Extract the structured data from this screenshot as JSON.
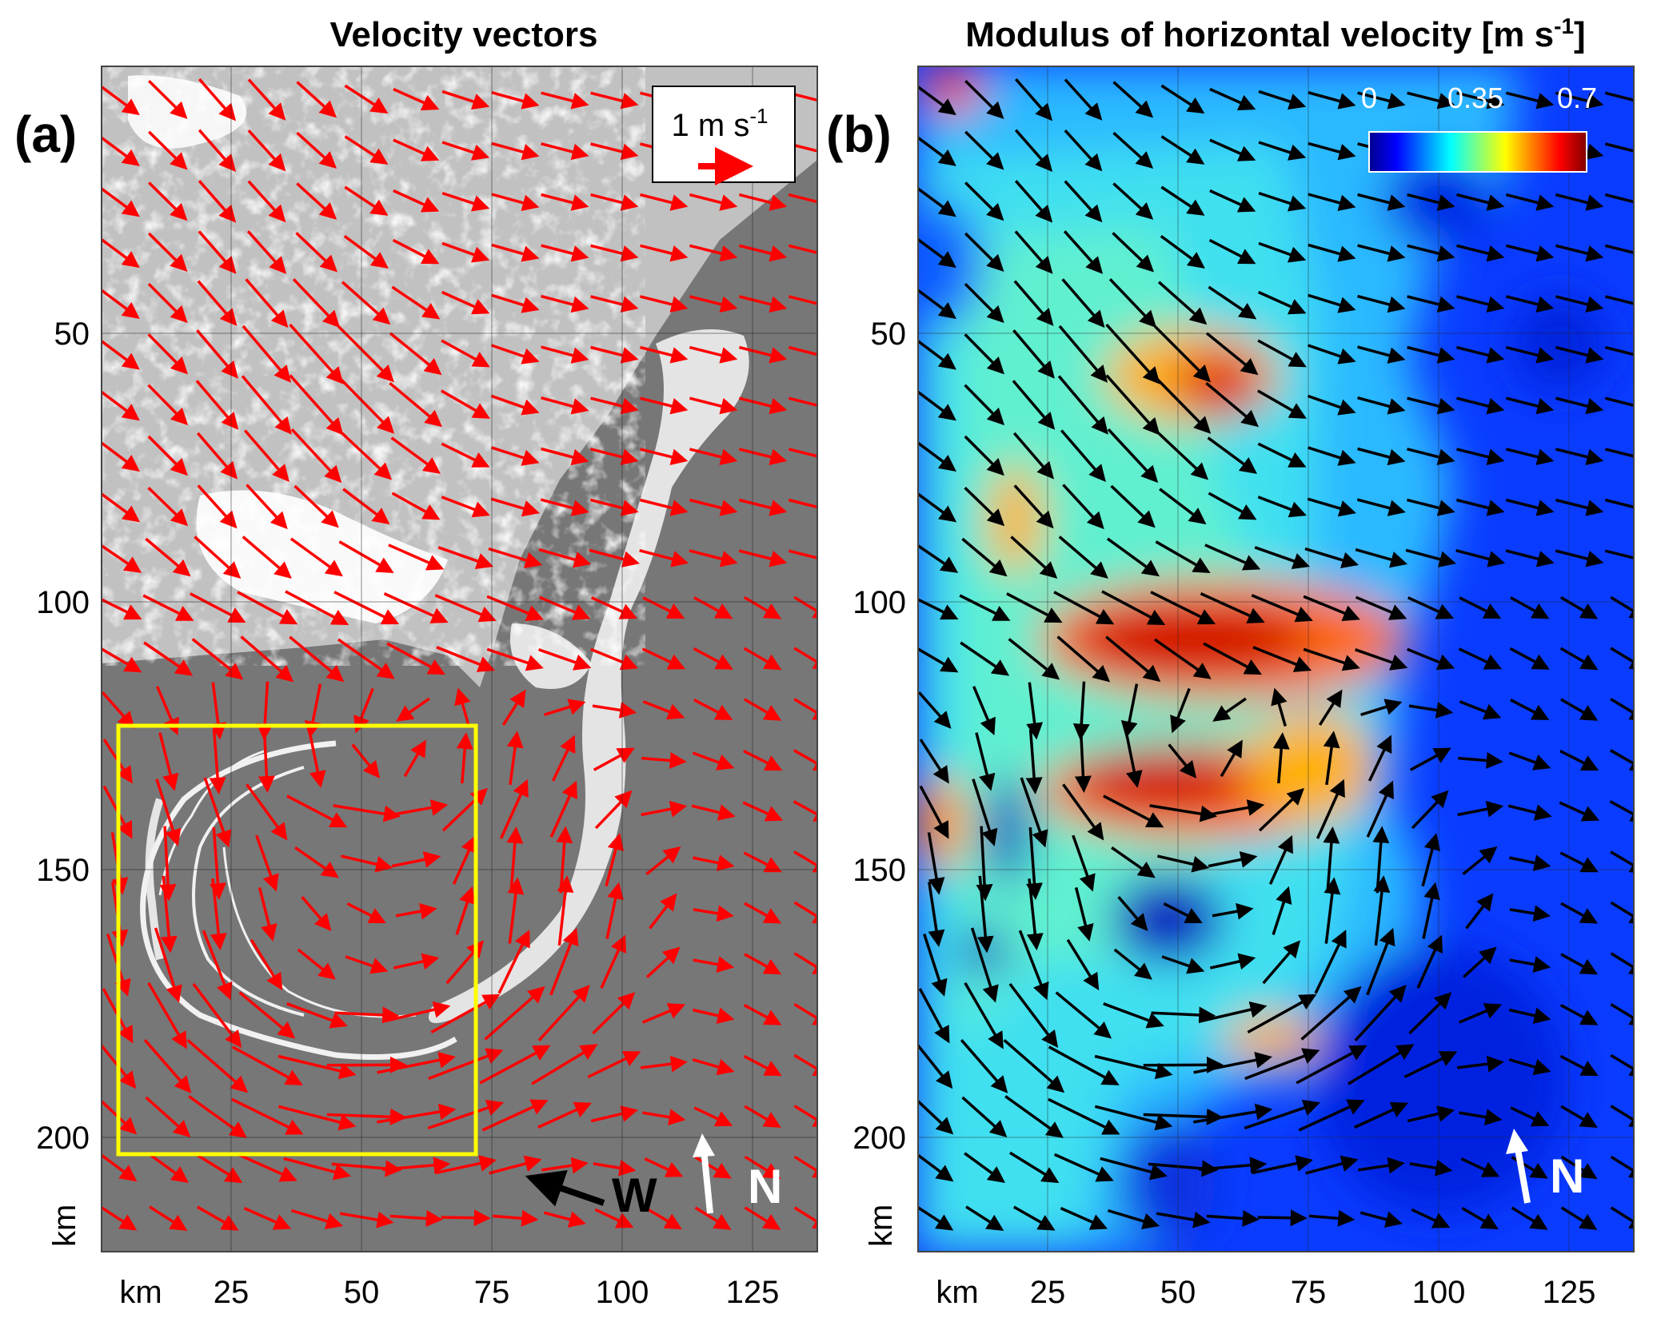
{
  "panel_a": {
    "title": "Velocity vectors",
    "letter": "(a)",
    "legend_label": "1 m s",
    "legend_label_exp": "-1",
    "w_label": "W",
    "n_label": "N"
  },
  "panel_b": {
    "title": "Modulus of horizontal velocity [m s",
    "title_exp": "-1",
    "title_end": "]",
    "letter": "(b)",
    "colorbar_ticks": [
      "0",
      "0.35",
      "0.7"
    ],
    "n_label": "N"
  },
  "axes": {
    "x_ticks": [
      "25",
      "50",
      "75",
      "100",
      "125"
    ],
    "y_ticks": [
      "50",
      "100",
      "150",
      "200"
    ],
    "x_unit": "km",
    "y_unit": "km"
  },
  "chart_data": [
    {
      "type": "scatter",
      "title": "Velocity vectors",
      "xlabel": "km",
      "ylabel": "km",
      "xlim": [
        0,
        138
      ],
      "ylim": [
        222,
        0
      ],
      "x_ticks": [
        25,
        50,
        75,
        100,
        125
      ],
      "y_ticks": [
        50,
        100,
        150,
        200
      ],
      "grid": true,
      "vector_color": "#ff0000",
      "legend": "1 m s-1",
      "legend_location": "top-right",
      "highlight_box": {
        "x": [
          2,
          72
        ],
        "y": [
          123,
          203
        ],
        "color": "#ffff00"
      },
      "eddy_center_km": [
        50,
        160
      ]
    },
    {
      "type": "heatmap",
      "title": "Modulus of horizontal velocity [m s-1]",
      "xlabel": "km",
      "ylabel": "km",
      "xlim": [
        0,
        138
      ],
      "ylim": [
        222,
        0
      ],
      "x_ticks": [
        25,
        50,
        75,
        100,
        125
      ],
      "y_ticks": [
        50,
        100,
        150,
        200
      ],
      "grid": true,
      "colormap": "jet",
      "colorbar_range": [
        0,
        0.7
      ],
      "colorbar_ticks": [
        0,
        0.35,
        0.7
      ],
      "colorbar_location": "top-right",
      "vector_color": "#000000",
      "high_speed_regions_km": [
        {
          "x": 57,
          "y": 62,
          "value": 0.7
        },
        {
          "x": 50,
          "y": 108,
          "value": 0.7
        },
        {
          "x": 45,
          "y": 137,
          "value": 0.7
        },
        {
          "x": 66,
          "y": 185,
          "value": 0.55
        }
      ],
      "low_speed_regions_km": [
        {
          "x": 50,
          "y": 160,
          "value": 0.05
        },
        {
          "x": 110,
          "y": 190,
          "value": 0.05
        }
      ]
    }
  ]
}
